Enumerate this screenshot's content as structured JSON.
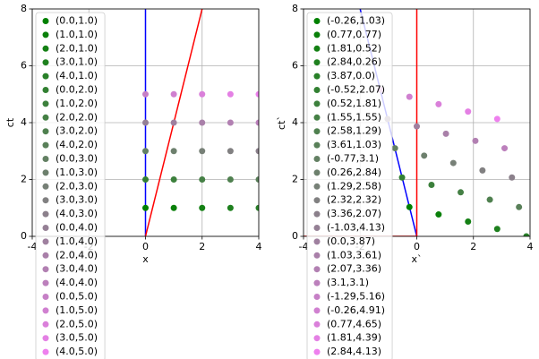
{
  "chart_data": [
    {
      "type": "scatter",
      "x_label": "x",
      "y_label": "ct",
      "xlim": [
        -4,
        4
      ],
      "ylim": [
        0,
        8
      ],
      "xticks": [
        -4,
        -2,
        0,
        2,
        4
      ],
      "yticks": [
        0,
        2,
        4,
        6,
        8
      ],
      "grid": true,
      "legend": "upper left",
      "lines": [
        {
          "color": "blue",
          "x": [
            0,
            0
          ],
          "values": [
            0,
            8
          ]
        },
        {
          "color": "red",
          "x": [
            0,
            2
          ],
          "values": [
            0,
            8
          ]
        }
      ],
      "series": [
        {
          "name": "(0.0,1.0)",
          "color": "#008000",
          "x": [
            0
          ],
          "values": [
            1
          ]
        },
        {
          "name": "(1.0,1.0)",
          "color": "#0a800a",
          "x": [
            1
          ],
          "values": [
            1
          ]
        },
        {
          "name": "(2.0,1.0)",
          "color": "#148014",
          "x": [
            2
          ],
          "values": [
            1
          ]
        },
        {
          "name": "(3.0,1.0)",
          "color": "#1e801e",
          "x": [
            3
          ],
          "values": [
            1
          ]
        },
        {
          "name": "(4.0,1.0)",
          "color": "#288028",
          "x": [
            4
          ],
          "values": [
            1
          ]
        },
        {
          "name": "(0.0,2.0)",
          "color": "#328032",
          "x": [
            0
          ],
          "values": [
            2
          ]
        },
        {
          "name": "(1.0,2.0)",
          "color": "#3c803c",
          "x": [
            1
          ],
          "values": [
            2
          ]
        },
        {
          "name": "(2.0,2.0)",
          "color": "#458045",
          "x": [
            2
          ],
          "values": [
            2
          ]
        },
        {
          "name": "(3.0,2.0)",
          "color": "#4f804f",
          "x": [
            3
          ],
          "values": [
            2
          ]
        },
        {
          "name": "(4.0,2.0)",
          "color": "#598059",
          "x": [
            4
          ],
          "values": [
            2
          ]
        },
        {
          "name": "(0.0,3.0)",
          "color": "#638063",
          "x": [
            0
          ],
          "values": [
            3
          ]
        },
        {
          "name": "(1.0,3.0)",
          "color": "#6d806d",
          "x": [
            1
          ],
          "values": [
            3
          ]
        },
        {
          "name": "(2.0,3.0)",
          "color": "#778077",
          "x": [
            2
          ],
          "values": [
            3
          ]
        },
        {
          "name": "(3.0,3.0)",
          "color": "#818081",
          "x": [
            3
          ],
          "values": [
            3
          ]
        },
        {
          "name": "(4.0,3.0)",
          "color": "#8b808b",
          "x": [
            4
          ],
          "values": [
            3
          ]
        },
        {
          "name": "(0.0,4.0)",
          "color": "#958095",
          "x": [
            0
          ],
          "values": [
            4
          ]
        },
        {
          "name": "(1.0,4.0)",
          "color": "#9f809f",
          "x": [
            1
          ],
          "values": [
            4
          ]
        },
        {
          "name": "(2.0,4.0)",
          "color": "#a980a9",
          "x": [
            2
          ],
          "values": [
            4
          ]
        },
        {
          "name": "(3.0,4.0)",
          "color": "#b280b2",
          "x": [
            3
          ],
          "values": [
            4
          ]
        },
        {
          "name": "(4.0,4.0)",
          "color": "#bc80bc",
          "x": [
            4
          ],
          "values": [
            4
          ]
        },
        {
          "name": "(0.0,5.0)",
          "color": "#c680c6",
          "x": [
            0
          ],
          "values": [
            5
          ]
        },
        {
          "name": "(1.0,5.0)",
          "color": "#d080d0",
          "x": [
            1
          ],
          "values": [
            5
          ]
        },
        {
          "name": "(2.0,5.0)",
          "color": "#da80da",
          "x": [
            2
          ],
          "values": [
            5
          ]
        },
        {
          "name": "(3.0,5.0)",
          "color": "#e480e4",
          "x": [
            3
          ],
          "values": [
            5
          ]
        },
        {
          "name": "(4.0,5.0)",
          "color": "#ee80ee",
          "x": [
            4
          ],
          "values": [
            5
          ]
        }
      ]
    },
    {
      "type": "scatter",
      "x_label": "x`",
      "y_label": "ct`",
      "xlim": [
        -4,
        4
      ],
      "ylim": [
        0,
        8
      ],
      "xticks": [
        -4,
        -2,
        0,
        2,
        4
      ],
      "yticks": [
        0,
        2,
        4,
        6,
        8
      ],
      "grid": true,
      "legend": "upper left",
      "lines": [
        {
          "color": "blue",
          "x": [
            0,
            -2
          ],
          "values": [
            0,
            8
          ]
        },
        {
          "color": "red",
          "x": [
            0,
            0
          ],
          "values": [
            0,
            8
          ]
        },
        {
          "color": "red",
          "x": [
            -4,
            0
          ],
          "values": [
            0,
            0
          ]
        }
      ],
      "series": [
        {
          "name": "(-0.26,1.03)",
          "color": "#008000",
          "x": [
            -0.26
          ],
          "values": [
            1.03
          ]
        },
        {
          "name": "(0.77,0.77)",
          "color": "#0a800a",
          "x": [
            0.77
          ],
          "values": [
            0.77
          ]
        },
        {
          "name": "(1.81,0.52)",
          "color": "#148014",
          "x": [
            1.81
          ],
          "values": [
            0.52
          ]
        },
        {
          "name": "(2.84,0.26)",
          "color": "#1e801e",
          "x": [
            2.84
          ],
          "values": [
            0.26
          ]
        },
        {
          "name": "(3.87,0.0)",
          "color": "#288028",
          "x": [
            3.87
          ],
          "values": [
            0.0
          ]
        },
        {
          "name": "(-0.52,2.07)",
          "color": "#328032",
          "x": [
            -0.52
          ],
          "values": [
            2.07
          ]
        },
        {
          "name": "(0.52,1.81)",
          "color": "#3c803c",
          "x": [
            0.52
          ],
          "values": [
            1.81
          ]
        },
        {
          "name": "(1.55,1.55)",
          "color": "#458045",
          "x": [
            1.55
          ],
          "values": [
            1.55
          ]
        },
        {
          "name": "(2.58,1.29)",
          "color": "#4f804f",
          "x": [
            2.58
          ],
          "values": [
            1.29
          ]
        },
        {
          "name": "(3.61,1.03)",
          "color": "#598059",
          "x": [
            3.61
          ],
          "values": [
            1.03
          ]
        },
        {
          "name": "(-0.77,3.1)",
          "color": "#638063",
          "x": [
            -0.77
          ],
          "values": [
            3.1
          ]
        },
        {
          "name": "(0.26,2.84)",
          "color": "#6d806d",
          "x": [
            0.26
          ],
          "values": [
            2.84
          ]
        },
        {
          "name": "(1.29,2.58)",
          "color": "#778077",
          "x": [
            1.29
          ],
          "values": [
            2.58
          ]
        },
        {
          "name": "(2.32,2.32)",
          "color": "#818081",
          "x": [
            2.32
          ],
          "values": [
            2.32
          ]
        },
        {
          "name": "(3.36,2.07)",
          "color": "#8b808b",
          "x": [
            3.36
          ],
          "values": [
            2.07
          ]
        },
        {
          "name": "(-1.03,4.13)",
          "color": "#958095",
          "x": [
            -1.03
          ],
          "values": [
            4.13
          ]
        },
        {
          "name": "(0.0,3.87)",
          "color": "#9f809f",
          "x": [
            0.0
          ],
          "values": [
            3.87
          ]
        },
        {
          "name": "(1.03,3.61)",
          "color": "#a980a9",
          "x": [
            1.03
          ],
          "values": [
            3.61
          ]
        },
        {
          "name": "(2.07,3.36)",
          "color": "#b280b2",
          "x": [
            2.07
          ],
          "values": [
            3.36
          ]
        },
        {
          "name": "(3.1,3.1)",
          "color": "#bc80bc",
          "x": [
            3.1
          ],
          "values": [
            3.1
          ]
        },
        {
          "name": "(-1.29,5.16)",
          "color": "#c680c6",
          "x": [
            -1.29
          ],
          "values": [
            5.16
          ]
        },
        {
          "name": "(-0.26,4.91)",
          "color": "#d080d0",
          "x": [
            -0.26
          ],
          "values": [
            4.91
          ]
        },
        {
          "name": "(0.77,4.65)",
          "color": "#da80da",
          "x": [
            0.77
          ],
          "values": [
            4.65
          ]
        },
        {
          "name": "(1.81,4.39)",
          "color": "#e480e4",
          "x": [
            1.81
          ],
          "values": [
            4.39
          ]
        },
        {
          "name": "(2.84,4.13)",
          "color": "#ee80ee",
          "x": [
            2.84
          ],
          "values": [
            4.13
          ]
        }
      ]
    }
  ]
}
